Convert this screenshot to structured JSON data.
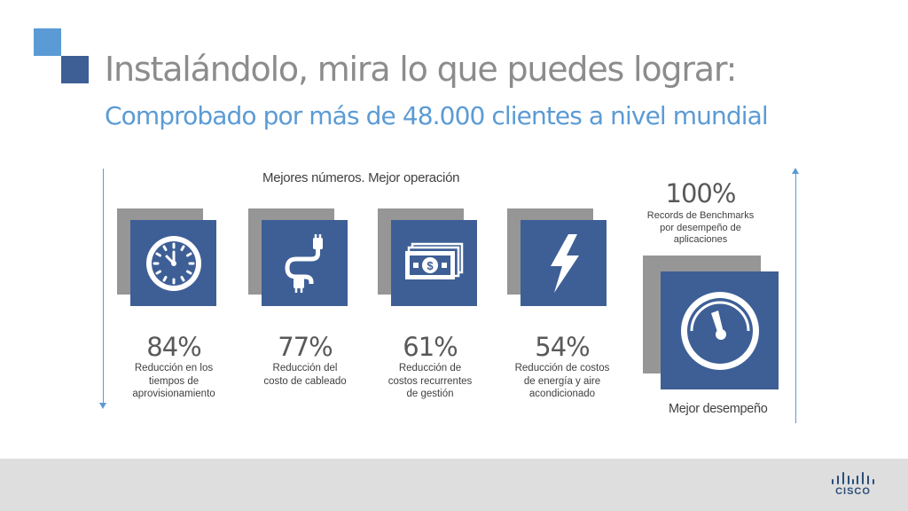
{
  "header": {
    "title": "Instalándolo, mira lo que puedes lograr:",
    "subtitle": "Comprobado por más de 48.000 clientes a nivel mundial"
  },
  "section": {
    "heading": "Mejores números. Mejor operación"
  },
  "metrics": [
    {
      "value": "84%",
      "description": "Reducción en los\ntiempos de\naprovisionamiento",
      "icon": "clock-icon"
    },
    {
      "value": "77%",
      "description": "Reducción del\ncosto de cableado",
      "icon": "cable-icon"
    },
    {
      "value": "61%",
      "description": "Reducción de\ncostos recurrentes\nde gestión",
      "icon": "money-icon"
    },
    {
      "value": "54%",
      "description": "Reducción de costos\nde energía y aire\nacondicionado",
      "icon": "lightning-icon"
    }
  ],
  "performance": {
    "value": "100%",
    "description": "Records de Benchmarks\npor desempeño de\naplicaciones",
    "label": "Mejor desempeño",
    "icon": "speedometer-icon"
  },
  "footer": {
    "logo_text": "CISCO"
  },
  "colors": {
    "accent": "#5b9bd5",
    "tile": "#3e5f96",
    "shadow": "#969696",
    "footer": "#dedede"
  }
}
